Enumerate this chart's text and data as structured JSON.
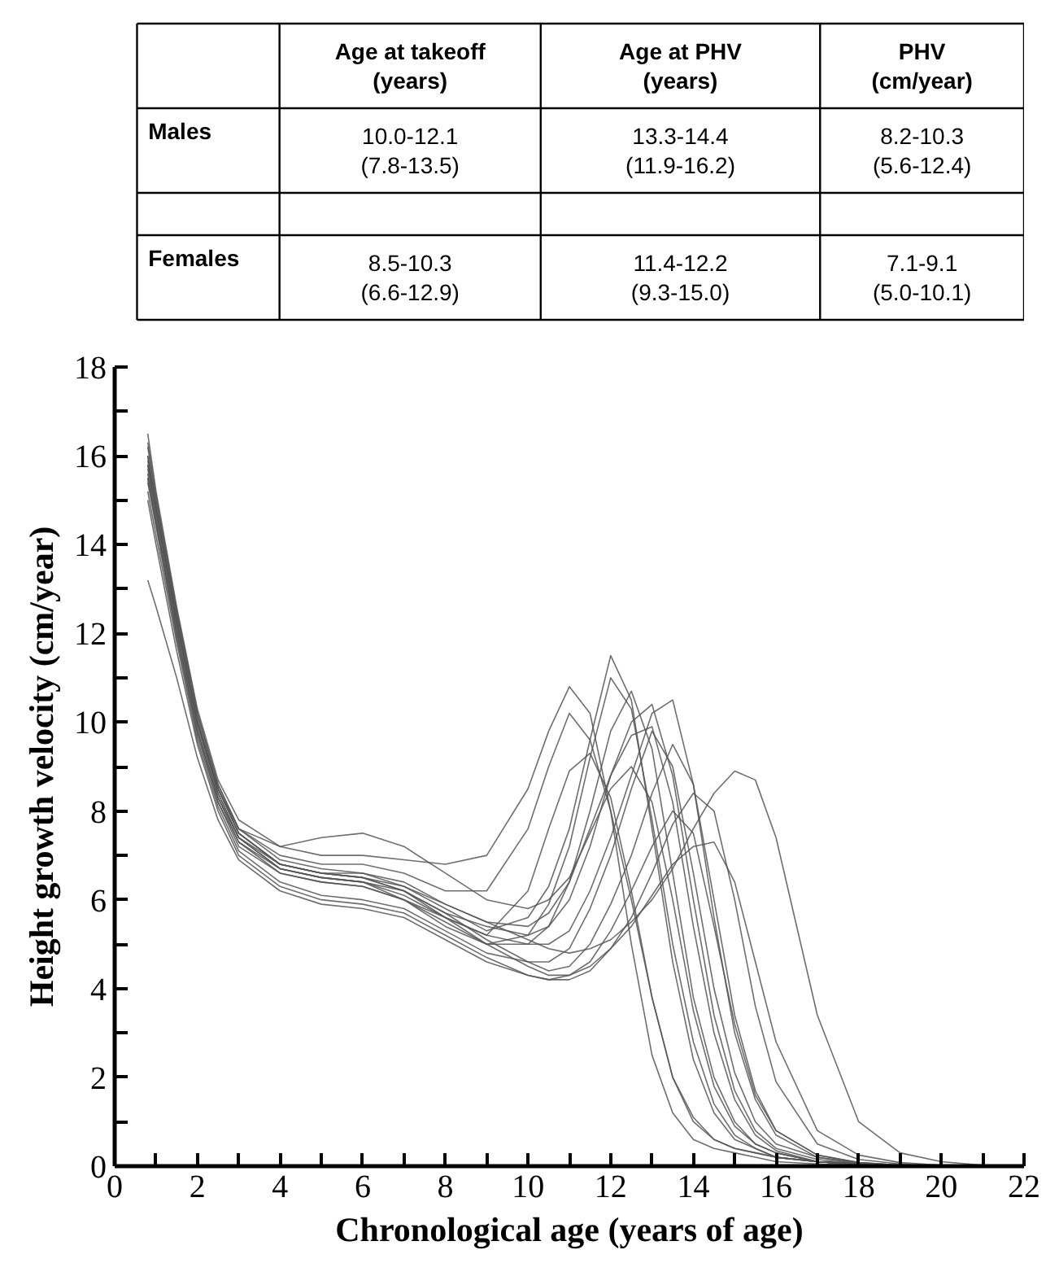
{
  "chart_data": [
    {
      "type": "other",
      "categories": [
        null,
        "Age at takeoff\n(years)",
        "Age at PHV\n(years)",
        "PHV\n(cm/year)"
      ],
      "y_categories": [
        "Males",
        null,
        "Females"
      ],
      "cell_labels": [
        [
          "10.0-12.1\n(7.8-13.5)",
          "13.3-14.4\n(11.9-16.2)",
          "8.2-10.3\n(5.6-12.4)"
        ],
        [
          null,
          null,
          null
        ],
        [
          "8.5-10.3\n(6.6-12.9)",
          "11.4-12.2\n(9.3-15.0)",
          "7.1-9.1\n(5.0-10.1)"
        ]
      ]
    },
    {
      "type": "line",
      "xlabel": "Chronological age (years of age)",
      "ylabel": "Height growth velocity (cm/year)",
      "xlim": [
        0,
        22
      ],
      "ylim": [
        0,
        18
      ],
      "xticks": [
        0,
        {
          "value": 1,
          "label": null
        },
        2,
        {
          "value": 3,
          "label": null
        },
        4,
        {
          "value": 5,
          "label": null
        },
        6,
        {
          "value": 7,
          "label": null
        },
        8,
        {
          "value": 9,
          "label": null
        },
        10,
        {
          "value": 11,
          "label": null
        },
        12,
        {
          "value": 13,
          "label": null
        },
        14,
        {
          "value": 15,
          "label": null
        },
        16,
        {
          "value": 17,
          "label": null
        },
        18,
        {
          "value": 19,
          "label": null
        },
        20,
        {
          "value": 21,
          "label": null
        },
        22
      ],
      "yticks": [
        0,
        {
          "value": 1,
          "label": null
        },
        2,
        {
          "value": 3,
          "label": null
        },
        4,
        {
          "value": 5,
          "label": null
        },
        6,
        {
          "value": 7,
          "label": null
        },
        8,
        {
          "value": 9,
          "label": null
        },
        10,
        {
          "value": 11,
          "label": null
        },
        12,
        {
          "value": 13,
          "label": null
        },
        14,
        {
          "value": 15,
          "label": null
        },
        16,
        {
          "value": 17,
          "label": null
        },
        18
      ],
      "grid": false,
      "line_style": "solid",
      "x": [
        0.8,
        1,
        1.5,
        2,
        2.5,
        3,
        4,
        5,
        6,
        7,
        8,
        9,
        10,
        10.5,
        11,
        11.5,
        12,
        12.5,
        13,
        13.5,
        14,
        14.5,
        15,
        15.5,
        16,
        17,
        18,
        19,
        20,
        21
      ],
      "series": [
        {
          "color": "#555555",
          "values": [
            16.5,
            15.2,
            12.6,
            10.3,
            8.7,
            7.8,
            7.2,
            7.0,
            7.0,
            6.9,
            6.8,
            7.0,
            8.5,
            9.8,
            10.8,
            10.2,
            8.0,
            5.0,
            2.5,
            1.2,
            0.6,
            0.4,
            0.3,
            0.2,
            0.1,
            0.05,
            0.02,
            0,
            0,
            0
          ]
        },
        {
          "color": "#555555",
          "values": [
            15.8,
            14.8,
            12.3,
            10.0,
            8.5,
            7.6,
            7.0,
            6.8,
            6.8,
            6.6,
            6.2,
            6.2,
            7.6,
            9.0,
            10.2,
            9.6,
            8.0,
            6.0,
            3.8,
            2.0,
            1.1,
            0.6,
            0.4,
            0.3,
            0.2,
            0.1,
            0.05,
            0,
            0,
            0
          ]
        },
        {
          "color": "#555555",
          "values": [
            15.5,
            14.5,
            12.0,
            9.8,
            8.3,
            7.4,
            6.8,
            6.6,
            6.5,
            6.2,
            5.6,
            5.2,
            6.2,
            7.6,
            8.9,
            9.3,
            8.3,
            6.2,
            3.8,
            2.0,
            1.0,
            0.6,
            0.4,
            0.3,
            0.2,
            0.1,
            0.05,
            0,
            0,
            0
          ]
        },
        {
          "color": "#555555",
          "values": [
            16.2,
            15.0,
            12.5,
            10.2,
            8.6,
            7.6,
            6.9,
            6.7,
            6.6,
            6.3,
            5.8,
            5.3,
            5.6,
            6.3,
            7.6,
            9.6,
            11.5,
            10.5,
            7.6,
            4.6,
            2.4,
            1.2,
            0.6,
            0.4,
            0.2,
            0.1,
            0.05,
            0,
            0,
            0
          ]
        },
        {
          "color": "#555555",
          "values": [
            15.9,
            14.8,
            12.2,
            10.0,
            8.4,
            7.4,
            6.7,
            6.5,
            6.4,
            6.0,
            5.5,
            5.0,
            5.2,
            5.9,
            7.2,
            9.2,
            11.0,
            10.3,
            7.8,
            5.0,
            2.8,
            1.4,
            0.7,
            0.4,
            0.2,
            0.1,
            0.05,
            0,
            0,
            0
          ]
        },
        {
          "color": "#555555",
          "values": [
            15.6,
            14.6,
            12.1,
            9.9,
            8.3,
            7.3,
            6.6,
            6.4,
            6.3,
            6.0,
            5.4,
            5.0,
            5.0,
            5.4,
            6.4,
            8.0,
            9.8,
            10.7,
            9.4,
            6.6,
            3.8,
            2.0,
            1.0,
            0.5,
            0.3,
            0.1,
            0.05,
            0,
            0,
            0
          ]
        },
        {
          "color": "#555555",
          "values": [
            16.0,
            14.9,
            12.3,
            10.0,
            8.5,
            7.5,
            6.8,
            6.6,
            6.5,
            6.2,
            5.7,
            5.4,
            5.2,
            5.4,
            6.0,
            7.2,
            8.8,
            10.0,
            10.4,
            8.8,
            6.0,
            3.4,
            1.7,
            0.8,
            0.4,
            0.15,
            0.05,
            0,
            0,
            0
          ]
        },
        {
          "color": "#555555",
          "values": [
            15.4,
            14.4,
            11.9,
            9.7,
            8.2,
            7.2,
            6.6,
            6.4,
            6.3,
            6.0,
            5.6,
            5.2,
            5.0,
            5.0,
            5.3,
            6.2,
            7.4,
            8.8,
            10.2,
            10.5,
            8.6,
            5.6,
            3.0,
            1.5,
            0.7,
            0.2,
            0.08,
            0.02,
            0,
            0
          ]
        },
        {
          "color": "#555555",
          "values": [
            15.2,
            14.2,
            11.8,
            9.6,
            8.1,
            7.1,
            6.4,
            6.1,
            6.0,
            5.8,
            5.3,
            4.8,
            4.6,
            4.6,
            4.9,
            5.8,
            7.0,
            8.5,
            9.8,
            9.0,
            6.6,
            4.0,
            2.1,
            1.0,
            0.5,
            0.2,
            0.05,
            0,
            0,
            0
          ]
        },
        {
          "color": "#555555",
          "values": [
            15.7,
            14.7,
            12.2,
            10.0,
            8.4,
            7.4,
            6.7,
            6.5,
            6.4,
            6.2,
            5.7,
            5.1,
            4.6,
            4.4,
            4.5,
            5.0,
            5.9,
            7.0,
            8.4,
            9.5,
            8.6,
            6.0,
            3.4,
            1.7,
            0.8,
            0.25,
            0.08,
            0.02,
            0,
            0
          ]
        },
        {
          "color": "#555555",
          "values": [
            15.0,
            14.0,
            11.6,
            9.5,
            8.0,
            7.0,
            6.3,
            6.0,
            5.9,
            5.7,
            5.2,
            4.7,
            4.3,
            4.2,
            4.2,
            4.4,
            4.9,
            5.6,
            6.6,
            7.7,
            8.4,
            8.0,
            6.0,
            3.6,
            1.9,
            0.5,
            0.15,
            0.05,
            0,
            0
          ]
        },
        {
          "color": "#555555",
          "values": [
            13.2,
            12.6,
            11.0,
            9.2,
            7.8,
            6.9,
            6.2,
            5.9,
            5.8,
            5.6,
            5.1,
            4.6,
            4.3,
            4.2,
            4.3,
            4.5,
            4.9,
            5.4,
            6.1,
            6.8,
            7.2,
            7.3,
            6.4,
            4.6,
            2.8,
            0.8,
            0.25,
            0.08,
            0.02,
            0
          ]
        },
        {
          "color": "#555555",
          "values": [
            15.8,
            14.8,
            12.3,
            10.0,
            8.5,
            7.5,
            6.8,
            6.6,
            6.5,
            6.3,
            5.9,
            5.5,
            5.1,
            4.9,
            4.8,
            4.9,
            5.1,
            5.5,
            6.0,
            6.7,
            7.6,
            8.4,
            8.9,
            8.7,
            7.4,
            3.4,
            1.0,
            0.3,
            0.1,
            0.02
          ]
        },
        {
          "color": "#555555",
          "values": [
            16.3,
            15.1,
            12.5,
            10.2,
            8.6,
            7.6,
            7.2,
            7.4,
            7.5,
            7.2,
            6.6,
            6.0,
            5.8,
            6.0,
            6.5,
            7.5,
            8.5,
            9.0,
            8.2,
            6.0,
            3.5,
            1.8,
            0.9,
            0.5,
            0.3,
            0.1,
            0.03,
            0,
            0,
            0
          ]
        },
        {
          "color": "#555555",
          "values": [
            15.5,
            14.5,
            12.0,
            9.8,
            8.2,
            7.3,
            6.7,
            6.5,
            6.4,
            6.1,
            5.6,
            5.0,
            4.5,
            4.3,
            4.3,
            4.6,
            5.3,
            6.2,
            7.2,
            8.0,
            7.5,
            5.4,
            3.2,
            1.6,
            0.8,
            0.25,
            0.08,
            0.02,
            0,
            0
          ]
        },
        {
          "color": "#555555",
          "values": [
            16.0,
            14.9,
            12.4,
            10.1,
            8.5,
            7.5,
            6.8,
            6.6,
            6.6,
            6.4,
            5.9,
            5.5,
            5.4,
            5.7,
            6.4,
            7.6,
            8.8,
            9.7,
            9.9,
            8.2,
            5.4,
            3.0,
            1.5,
            0.7,
            0.35,
            0.1,
            0.03,
            0,
            0,
            0
          ]
        }
      ]
    }
  ]
}
